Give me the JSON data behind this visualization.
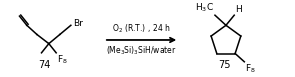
{
  "fig_width": 2.95,
  "fig_height": 0.77,
  "dpi": 100,
  "bg_color": "#ffffff",
  "compound74_label": "74",
  "compound75_label": "75",
  "arrow_condition_top": "O$_2$ (R.T.) , 24 h",
  "arrow_condition_bottom": "(Me$_3$Si)$_3$SiH/water",
  "product_sub_top_left": "H$_3$C",
  "product_sub_top_right": "H",
  "product_sub_bottom": "F$_8$",
  "br_label": "Br",
  "f8_label": "F$_8$"
}
